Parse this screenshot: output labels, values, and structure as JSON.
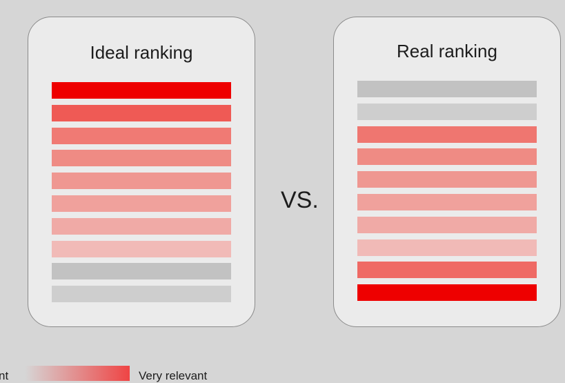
{
  "panels": {
    "ideal": {
      "title": "Ideal ranking",
      "rows": [
        {
          "relevance": 1.0,
          "color": "#ee0000"
        },
        {
          "relevance": 0.85,
          "color": "#ef5a55"
        },
        {
          "relevance": 0.75,
          "color": "#f07a74"
        },
        {
          "relevance": 0.65,
          "color": "#ef8b84"
        },
        {
          "relevance": 0.55,
          "color": "#ef9791"
        },
        {
          "relevance": 0.45,
          "color": "#f0a19c"
        },
        {
          "relevance": 0.35,
          "color": "#f0aaa6"
        },
        {
          "relevance": 0.25,
          "color": "#f1bab7"
        },
        {
          "relevance": 0.0,
          "color": "#c2c2c2"
        },
        {
          "relevance": 0.0,
          "color": "#cecece"
        }
      ]
    },
    "real": {
      "title": "Real ranking",
      "rows": [
        {
          "relevance": 0.0,
          "color": "#c2c2c2"
        },
        {
          "relevance": 0.0,
          "color": "#cecece"
        },
        {
          "relevance": 0.75,
          "color": "#ef7670"
        },
        {
          "relevance": 0.65,
          "color": "#ef8b84"
        },
        {
          "relevance": 0.55,
          "color": "#ef9791"
        },
        {
          "relevance": 0.45,
          "color": "#f0a19c"
        },
        {
          "relevance": 0.35,
          "color": "#f0aaa6"
        },
        {
          "relevance": 0.25,
          "color": "#f1bab7"
        },
        {
          "relevance": 0.85,
          "color": "#ef6a65"
        },
        {
          "relevance": 1.0,
          "color": "#ee0000"
        }
      ]
    }
  },
  "comparison_label": "VS.",
  "legend": {
    "low_label": "nt",
    "high_label": "Very relevant",
    "gradient_start_color": "#d6d6d6",
    "gradient_end_color": "#ef4444"
  }
}
